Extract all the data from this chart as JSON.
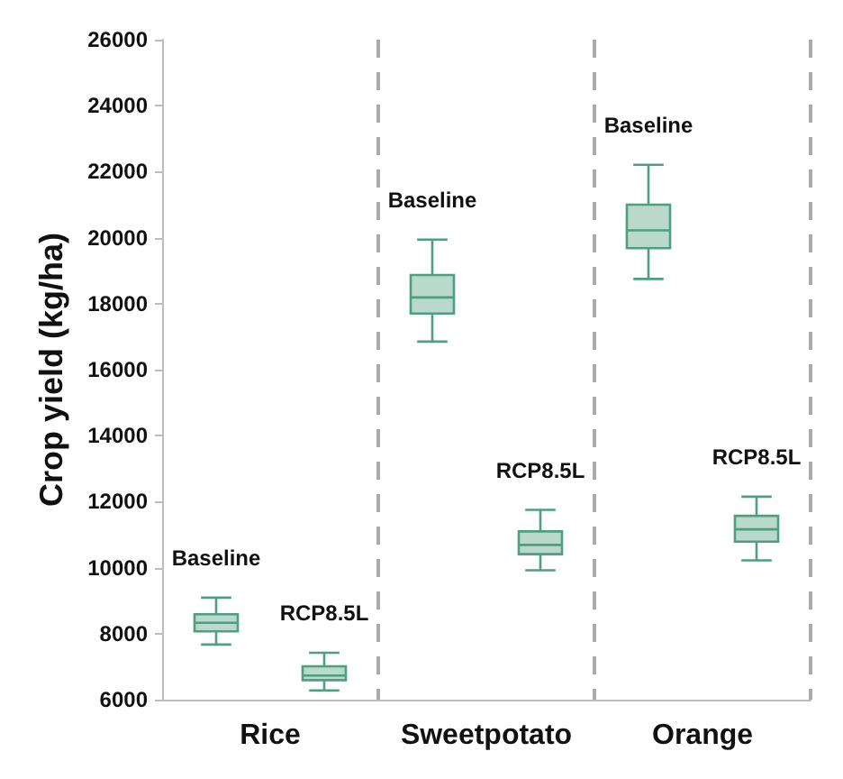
{
  "chart_data": {
    "type": "box",
    "ylabel": "Crop yield (kg/ha)",
    "categories": [
      "Rice",
      "Sweetpotato",
      "Orange"
    ],
    "ylim": [
      6000,
      26000
    ],
    "yticks": [
      6000,
      8000,
      10000,
      12000,
      14000,
      16000,
      18000,
      20000,
      22000,
      24000,
      26000
    ],
    "grid": "x",
    "legend": false,
    "series": [
      {
        "name": "Baseline",
        "color": "#4e9f7e",
        "boxes": [
          {
            "low": 7670,
            "q1": 8070,
            "median": 8330,
            "q3": 8590,
            "high": 9090
          },
          {
            "low": 16850,
            "q1": 17700,
            "median": 18190,
            "q3": 18870,
            "high": 19940
          },
          {
            "low": 18750,
            "q1": 19680,
            "median": 20220,
            "q3": 21000,
            "high": 22210
          }
        ]
      },
      {
        "name": "RCP8.5L",
        "color": "#4e9f7e",
        "boxes": [
          {
            "low": 6280,
            "q1": 6590,
            "median": 6730,
            "q3": 7010,
            "high": 7420
          },
          {
            "low": 9920,
            "q1": 10410,
            "median": 10690,
            "q3": 11100,
            "high": 11750
          },
          {
            "low": 10220,
            "q1": 10790,
            "median": 11160,
            "q3": 11570,
            "high": 12150
          }
        ]
      }
    ]
  }
}
